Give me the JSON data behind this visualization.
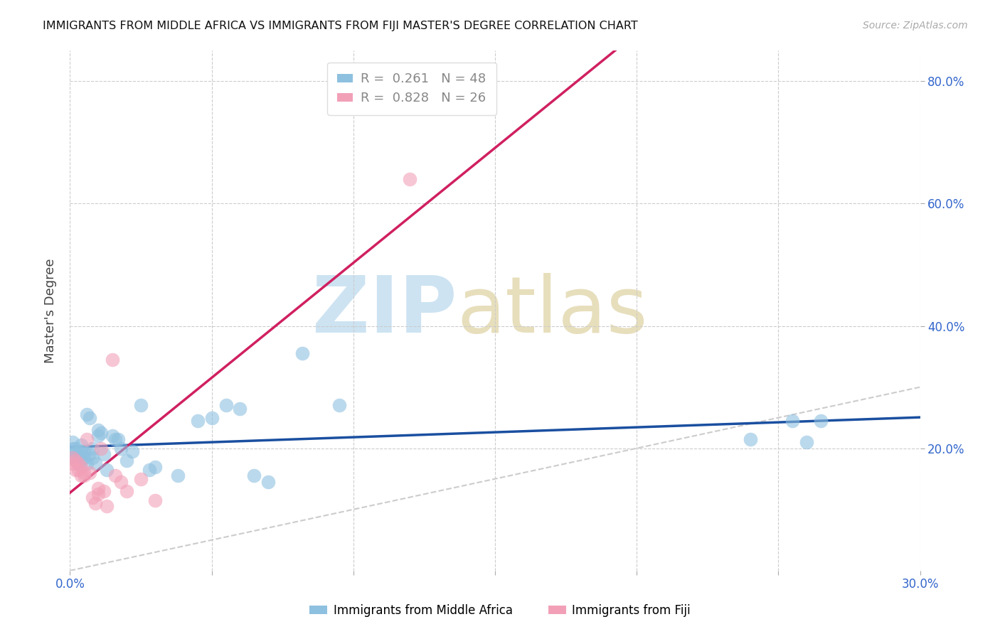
{
  "title": "IMMIGRANTS FROM MIDDLE AFRICA VS IMMIGRANTS FROM FIJI MASTER'S DEGREE CORRELATION CHART",
  "source": "Source: ZipAtlas.com",
  "ylabel": "Master's Degree",
  "xlim": [
    0.0,
    0.3
  ],
  "ylim": [
    0.0,
    0.85
  ],
  "blue_R": "0.261",
  "blue_N": "48",
  "pink_R": "0.828",
  "pink_N": "26",
  "legend_label_blue": "Immigrants from Middle Africa",
  "legend_label_pink": "Immigrants from Fiji",
  "blue_color": "#8ec0e0",
  "pink_color": "#f2a0b8",
  "blue_line_color": "#1a4fa0",
  "pink_line_color": "#d02060",
  "diagonal_color": "#cccccc",
  "tick_color": "#3366cc",
  "blue_scatter_x": [
    0.001,
    0.001,
    0.001,
    0.002,
    0.002,
    0.002,
    0.003,
    0.003,
    0.003,
    0.004,
    0.004,
    0.004,
    0.005,
    0.005,
    0.006,
    0.006,
    0.007,
    0.007,
    0.008,
    0.008,
    0.009,
    0.01,
    0.01,
    0.011,
    0.012,
    0.013,
    0.015,
    0.016,
    0.017,
    0.018,
    0.02,
    0.022,
    0.025,
    0.028,
    0.03,
    0.038,
    0.045,
    0.05,
    0.055,
    0.06,
    0.065,
    0.07,
    0.082,
    0.095,
    0.24,
    0.255,
    0.26,
    0.265
  ],
  "blue_scatter_y": [
    0.185,
    0.2,
    0.21,
    0.185,
    0.195,
    0.2,
    0.19,
    0.175,
    0.185,
    0.18,
    0.195,
    0.205,
    0.185,
    0.195,
    0.175,
    0.255,
    0.25,
    0.19,
    0.185,
    0.2,
    0.175,
    0.23,
    0.22,
    0.225,
    0.19,
    0.165,
    0.22,
    0.215,
    0.215,
    0.2,
    0.18,
    0.195,
    0.27,
    0.165,
    0.17,
    0.155,
    0.245,
    0.25,
    0.27,
    0.265,
    0.155,
    0.145,
    0.355,
    0.27,
    0.215,
    0.245,
    0.21,
    0.245
  ],
  "pink_scatter_x": [
    0.001,
    0.001,
    0.002,
    0.002,
    0.003,
    0.003,
    0.004,
    0.004,
    0.005,
    0.005,
    0.006,
    0.007,
    0.008,
    0.009,
    0.01,
    0.01,
    0.011,
    0.012,
    0.013,
    0.015,
    0.016,
    0.018,
    0.02,
    0.025,
    0.03,
    0.12
  ],
  "pink_scatter_y": [
    0.175,
    0.185,
    0.165,
    0.18,
    0.165,
    0.175,
    0.155,
    0.17,
    0.16,
    0.155,
    0.215,
    0.16,
    0.12,
    0.11,
    0.125,
    0.135,
    0.2,
    0.13,
    0.105,
    0.345,
    0.155,
    0.145,
    0.13,
    0.15,
    0.115,
    0.64
  ],
  "ytick_pos": [
    0.2,
    0.4,
    0.6,
    0.8
  ],
  "ytick_labels": [
    "20.0%",
    "40.0%",
    "60.0%",
    "80.0%"
  ],
  "xtick_pos": [
    0.0,
    0.05,
    0.1,
    0.15,
    0.2,
    0.25,
    0.3
  ],
  "xtick_labels": [
    "0.0%",
    "",
    "",
    "",
    "",
    "",
    "30.0%"
  ]
}
